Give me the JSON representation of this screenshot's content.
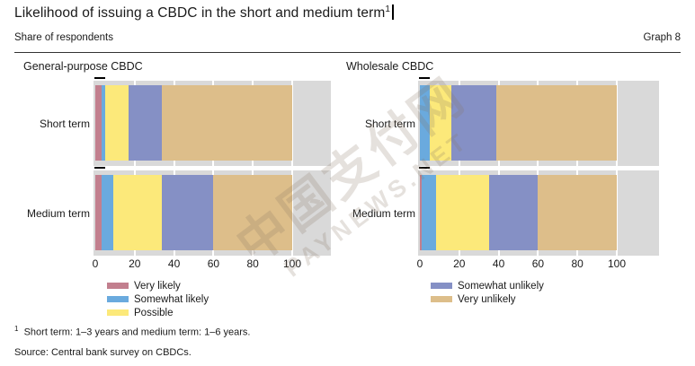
{
  "header": {
    "title": "Likelihood of issuing a CBDC in the short and medium term",
    "title_footnote_marker": "1",
    "subtitle": "Share of respondents",
    "graph_label": "Graph 8"
  },
  "chart_data": {
    "type": "bar",
    "orientation": "horizontal",
    "stacked": true,
    "value_unit": "percent of respondents",
    "x_ticks": [
      0,
      20,
      40,
      60,
      80,
      100
    ],
    "xlim": [
      0,
      120
    ],
    "grid": true,
    "plot_bg": "#d9d9d9",
    "series_colors": {
      "Very likely": "#c27f8e",
      "Somewhat likely": "#6aaade",
      "Possible": "#fce97a",
      "Somewhat unlikely": "#8590c5",
      "Very unlikely": "#ddbe8a"
    },
    "panels": [
      {
        "title": "General-purpose CBDC",
        "categories": [
          "Short term",
          "Medium term"
        ],
        "series": [
          {
            "name": "Very likely",
            "values": [
              3,
              3
            ]
          },
          {
            "name": "Somewhat likely",
            "values": [
              2,
              6
            ]
          },
          {
            "name": "Possible",
            "values": [
              12,
              25
            ]
          },
          {
            "name": "Somewhat unlikely",
            "values": [
              17,
              26
            ]
          },
          {
            "name": "Very unlikely",
            "values": [
              66,
              40
            ]
          }
        ]
      },
      {
        "title": "Wholesale CBDC",
        "categories": [
          "Short term",
          "Medium term"
        ],
        "series": [
          {
            "name": "Very likely",
            "values": [
              0,
              1
            ]
          },
          {
            "name": "Somewhat likely",
            "values": [
              5,
              7
            ]
          },
          {
            "name": "Possible",
            "values": [
              11,
              27
            ]
          },
          {
            "name": "Somewhat unlikely",
            "values": [
              23,
              25
            ]
          },
          {
            "name": "Very unlikely",
            "values": [
              61,
              40
            ]
          }
        ]
      }
    ]
  },
  "legend": {
    "left": [
      "Very likely",
      "Somewhat likely",
      "Possible"
    ],
    "right": [
      "Somewhat unlikely",
      "Very unlikely"
    ]
  },
  "watermark": {
    "line1": "中国支付网",
    "line2": "PAYNEWS.NET"
  },
  "footnote": {
    "marker": "1",
    "text": "Short term: 1–3 years and medium term: 1–6 years."
  },
  "source": "Source: Central bank survey on CBDCs."
}
